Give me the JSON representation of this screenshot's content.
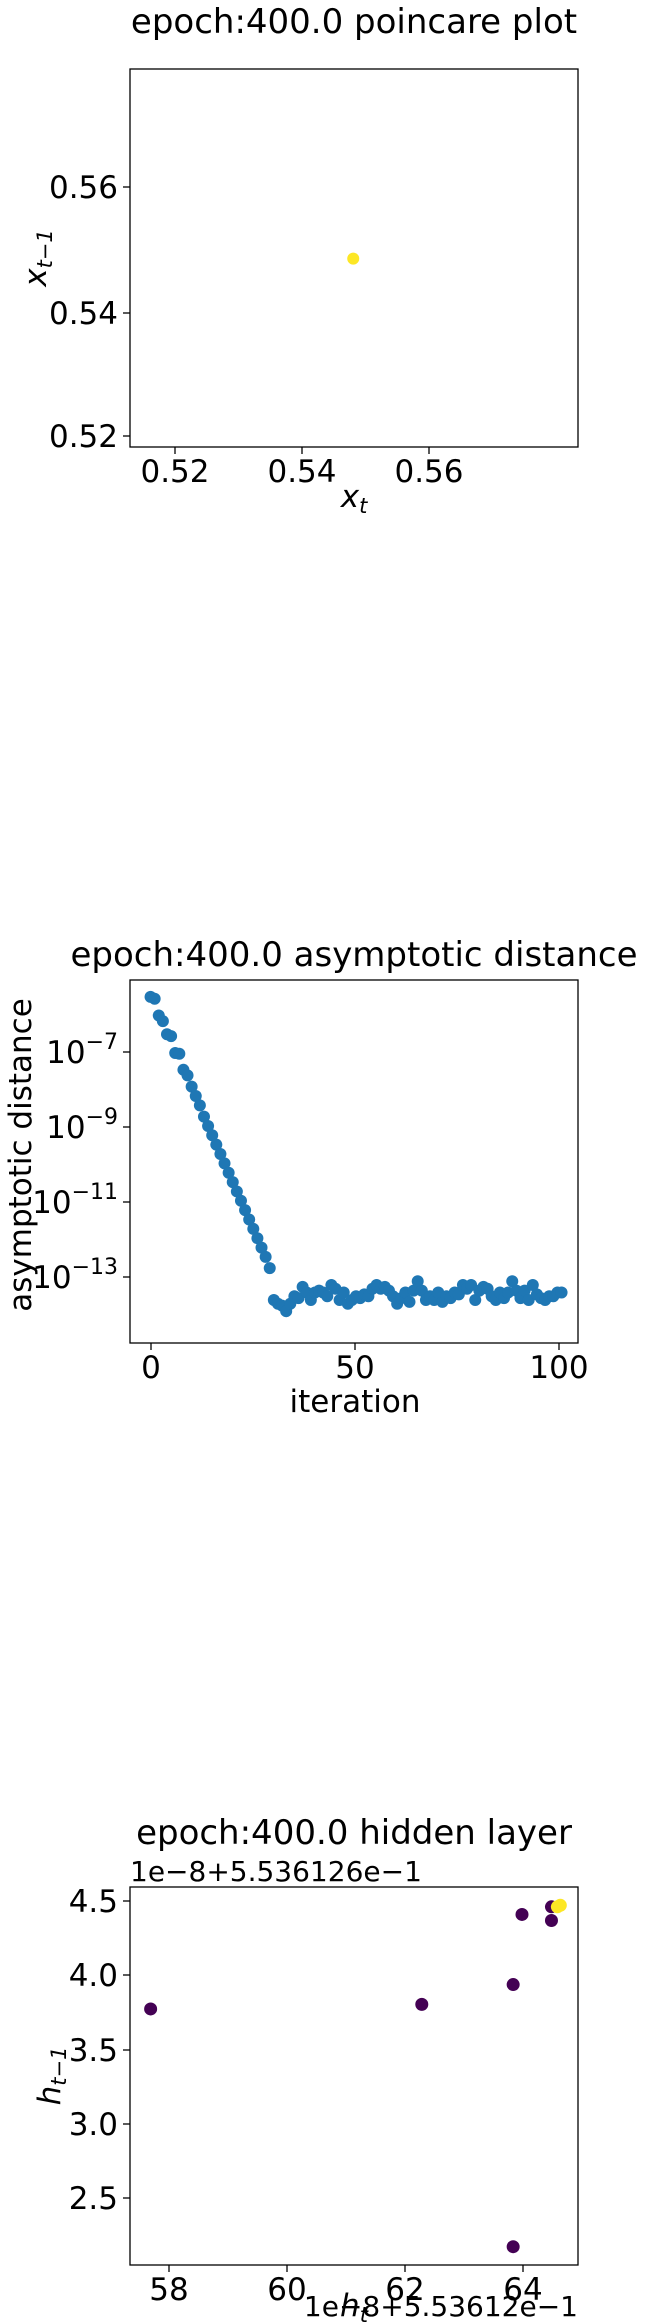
{
  "chart_data": [
    {
      "type": "scatter",
      "title": "epoch:400.0 poincare plot",
      "xlabel": "x_t",
      "ylabel": "x_{t-1}",
      "xlim": [
        0.519,
        0.578
      ],
      "ylim": [
        0.519,
        0.578
      ],
      "xticks": [
        "0.52",
        "0.54",
        "0.56"
      ],
      "yticks": [
        "0.52",
        "0.54",
        "0.56"
      ],
      "points": [
        {
          "x": 0.5484,
          "y": 0.5484,
          "color": "#fde725"
        }
      ]
    },
    {
      "type": "scatter",
      "title": "epoch:400.0 asymptotic distance",
      "xlabel": "iteration",
      "ylabel": "asymptotic distance",
      "yscale": "log",
      "xlim": [
        -5,
        104
      ],
      "ylim_log10": [
        -15.25,
        -5.55
      ],
      "xticks": [
        "0",
        "50",
        "100"
      ],
      "yticks": [
        {
          "exp": -7,
          "label": "10",
          "sup": "−7"
        },
        {
          "exp": -9,
          "label": "10",
          "sup": "−9"
        },
        {
          "exp": -11,
          "label": "10",
          "sup": "−11"
        },
        {
          "exp": -13,
          "label": "10",
          "sup": "−13"
        }
      ],
      "color": "#1f77b4",
      "log10_values": [
        -6.0,
        -6.05,
        -6.5,
        -6.65,
        -7.0,
        -7.05,
        -7.5,
        -7.52,
        -7.95,
        -8.1,
        -8.4,
        -8.65,
        -8.9,
        -9.2,
        -9.45,
        -9.7,
        -9.95,
        -10.2,
        -10.45,
        -10.7,
        -10.95,
        -11.2,
        -11.45,
        -11.7,
        -11.95,
        -12.2,
        -12.45,
        -12.7,
        -12.95,
        -13.25,
        -14.1,
        -14.2,
        -14.25,
        -14.4,
        -14.2,
        -14.0,
        -14.05,
        -13.75,
        -13.9,
        -14.1,
        -13.9,
        -13.85,
        -13.9,
        -14.0,
        -13.7,
        -13.8,
        -14.1,
        -13.9,
        -14.2,
        -14.1,
        -14.0,
        -14.05,
        -13.95,
        -14.0,
        -13.8,
        -13.7,
        -13.8,
        -13.75,
        -13.85,
        -14.0,
        -14.2,
        -14.05,
        -13.9,
        -14.15,
        -13.85,
        -13.6,
        -13.85,
        -14.1,
        -14.0,
        -14.1,
        -13.9,
        -14.15,
        -14.0,
        -14.05,
        -13.9,
        -13.95,
        -13.7,
        -13.8,
        -13.7,
        -14.1,
        -13.85,
        -13.75,
        -13.8,
        -14.0,
        -14.1,
        -13.9,
        -14.05,
        -13.9,
        -13.6,
        -13.85,
        -14.05,
        -13.85,
        -14.1,
        -13.7,
        -13.95,
        -14.05,
        -14.1,
        -14.0,
        -14.0,
        -13.9,
        -13.9
      ]
    },
    {
      "type": "scatter",
      "title": "epoch:400.0 hidden layer",
      "xlabel": "h_t",
      "ylabel": "h_{t-1}",
      "y_offset_text": "1e−8+5.536126e−1",
      "x_offset_text": "1e−8+5.53612e−1",
      "xlim": [
        57.3,
        64.9
      ],
      "ylim": [
        2.13,
        4.61
      ],
      "xticks": [
        "58",
        "60",
        "62",
        "64"
      ],
      "yticks": [
        "2.5",
        "3.0",
        "3.5",
        "4.0",
        "4.5"
      ],
      "points": [
        {
          "x": 57.65,
          "y": 3.81,
          "color": "#440154"
        },
        {
          "x": 62.25,
          "y": 3.84,
          "color": "#440154"
        },
        {
          "x": 63.8,
          "y": 3.97,
          "color": "#440154"
        },
        {
          "x": 63.8,
          "y": 2.25,
          "color": "#440154"
        },
        {
          "x": 63.95,
          "y": 4.43,
          "color": "#440154"
        },
        {
          "x": 64.45,
          "y": 4.39,
          "color": "#440154"
        },
        {
          "x": 64.45,
          "y": 4.48,
          "color": "#440154"
        },
        {
          "x": 64.55,
          "y": 4.48,
          "color": "#fde725"
        },
        {
          "x": 64.6,
          "y": 4.49,
          "color": "#fde725"
        }
      ]
    }
  ]
}
